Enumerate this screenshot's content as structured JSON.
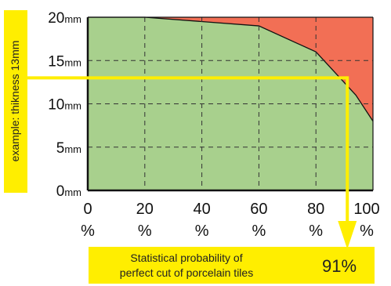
{
  "chart_data": {
    "type": "area",
    "x": [
      0,
      20,
      60,
      80,
      94,
      100
    ],
    "boundary": [
      20,
      20,
      19,
      16,
      11,
      8
    ],
    "xlim": [
      0,
      100
    ],
    "ylim": [
      0,
      20
    ],
    "xticks": [
      "0",
      "20",
      "40",
      "60",
      "80",
      "100"
    ],
    "xtick_suffix": "%",
    "yticks": [
      "0",
      "5",
      "10",
      "15",
      "20"
    ],
    "ytick_suffix": "mm",
    "grid": true,
    "colors": {
      "below": "#a8d08d",
      "above": "#f26f55",
      "highlight": "#ffee00",
      "frame": "#111111"
    },
    "example": {
      "label": "example: thikness 13mm",
      "thickness": 13,
      "probability": 91
    },
    "result_box": {
      "line1": "Statistical probability of",
      "line2": "perfect cut of porcelain tiles",
      "value": "91%"
    }
  }
}
